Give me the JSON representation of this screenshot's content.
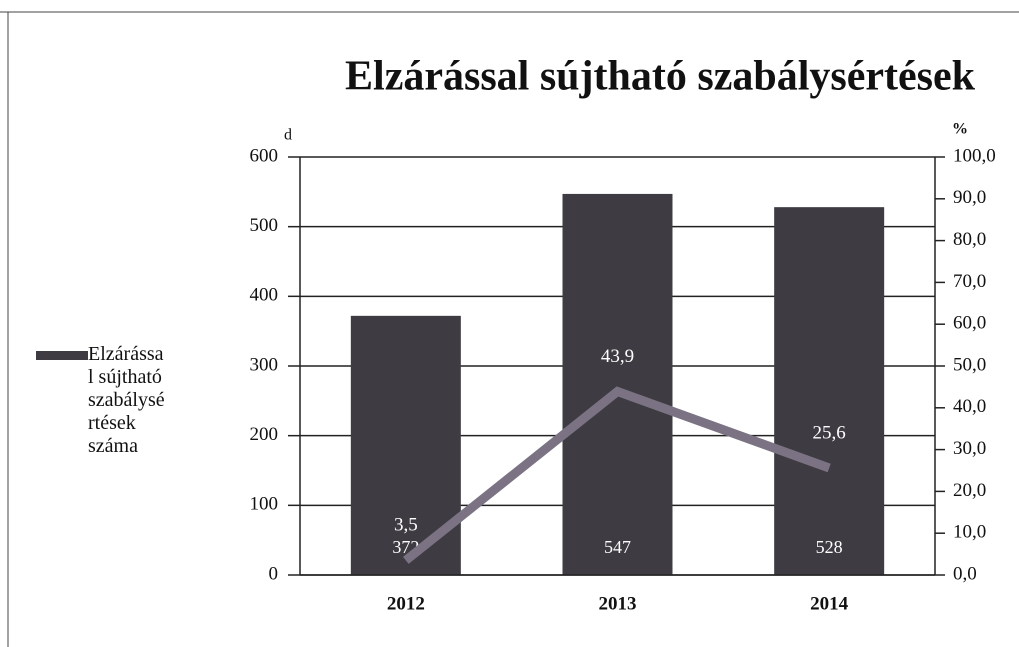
{
  "chart_data": {
    "type": "bar-line",
    "title": "Elzárással sújtható szabálysértések",
    "y_label": "d",
    "y2_label": "%",
    "categories": [
      "2012",
      "2013",
      "2014"
    ],
    "series": [
      {
        "name": "Elzárással sújtható szabálysértések száma",
        "type": "bar",
        "color": "#3e3b42",
        "values": [
          372,
          547,
          528
        ]
      },
      {
        "type": "line",
        "axis": "y2",
        "color": "#7b7383",
        "values": [
          3.5,
          43.9,
          25.6
        ],
        "value_labels": [
          "3,5",
          "43,9",
          "25,6"
        ]
      }
    ],
    "ylim": [
      0,
      600
    ],
    "yticks": [
      0,
      100,
      200,
      300,
      400,
      500,
      600
    ],
    "y2lim": [
      0,
      100
    ],
    "y2ticks": [
      {
        "value": 0,
        "label": "0,0"
      },
      {
        "value": 10,
        "label": "10,0"
      },
      {
        "value": 20,
        "label": "20,0"
      },
      {
        "value": 30,
        "label": "30,0"
      },
      {
        "value": 40,
        "label": "40,0"
      },
      {
        "value": 50,
        "label": "50,0"
      },
      {
        "value": 60,
        "label": "60,0"
      },
      {
        "value": 70,
        "label": "70,0"
      },
      {
        "value": 80,
        "label": "80,0"
      },
      {
        "value": 90,
        "label": "90,0"
      },
      {
        "value": 100,
        "label": "100,0"
      }
    ],
    "grid": true,
    "legend": "left"
  }
}
